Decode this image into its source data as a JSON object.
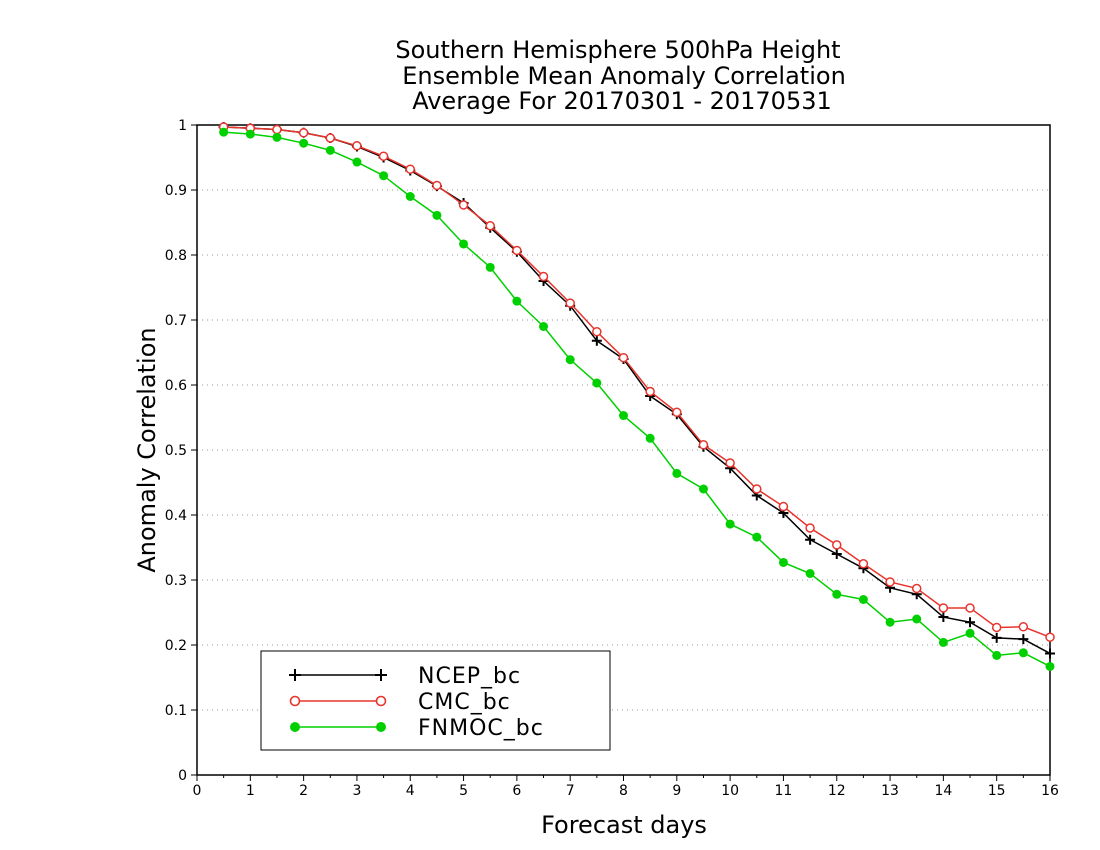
{
  "chart_data": {
    "type": "line",
    "title": [
      "Southern Hemisphere 500hPa Height",
      "Ensemble Mean Anomaly Correlation",
      "Average For 20170301 - 20170531"
    ],
    "xlabel": "Forecast days",
    "ylabel": "Anomaly Correlation",
    "xlim": [
      0,
      16
    ],
    "ylim": [
      0,
      1
    ],
    "xticks": [
      "0",
      "1",
      "2",
      "3",
      "4",
      "5",
      "6",
      "7",
      "8",
      "9",
      "10",
      "11",
      "12",
      "13",
      "14",
      "15",
      "16"
    ],
    "yticks": [
      "0",
      "0.1",
      "0.2",
      "0.3",
      "0.4",
      "0.5",
      "0.6",
      "0.7",
      "0.8",
      "0.9",
      "1"
    ],
    "grid": "dotted horizontal",
    "legend_position": "bottom-left",
    "x": [
      0.5,
      1,
      1.5,
      2,
      2.5,
      3,
      3.5,
      4,
      4.5,
      5,
      5.5,
      6,
      6.5,
      7,
      7.5,
      8,
      8.5,
      9,
      9.5,
      10,
      10.5,
      11,
      11.5,
      12,
      12.5,
      13,
      13.5,
      14,
      14.5,
      15,
      15.5,
      16
    ],
    "series": [
      {
        "name": "NCEP_bc",
        "color": "#000000",
        "marker": "plus",
        "values": [
          0.997,
          0.995,
          0.993,
          0.988,
          0.98,
          0.967,
          0.95,
          0.93,
          0.906,
          0.88,
          0.842,
          0.805,
          0.76,
          0.722,
          0.668,
          0.64,
          0.583,
          0.555,
          0.505,
          0.472,
          0.43,
          0.403,
          0.362,
          0.34,
          0.318,
          0.288,
          0.278,
          0.243,
          0.235,
          0.211,
          0.209,
          0.187
        ]
      },
      {
        "name": "CMC_bc",
        "color": "#e8342c",
        "marker": "open-circle",
        "values": [
          0.997,
          0.995,
          0.993,
          0.988,
          0.98,
          0.968,
          0.952,
          0.932,
          0.907,
          0.877,
          0.845,
          0.807,
          0.767,
          0.726,
          0.682,
          0.642,
          0.59,
          0.558,
          0.508,
          0.48,
          0.44,
          0.413,
          0.38,
          0.354,
          0.325,
          0.297,
          0.287,
          0.257,
          0.257,
          0.227,
          0.228,
          0.212
        ]
      },
      {
        "name": "FNMOC_bc",
        "color": "#00d000",
        "marker": "filled-circle",
        "values": [
          0.989,
          0.986,
          0.981,
          0.972,
          0.961,
          0.943,
          0.922,
          0.89,
          0.861,
          0.817,
          0.781,
          0.729,
          0.69,
          0.639,
          0.603,
          0.553,
          0.518,
          0.464,
          0.44,
          0.386,
          0.366,
          0.327,
          0.31,
          0.278,
          0.27,
          0.235,
          0.24,
          0.204,
          0.218,
          0.184,
          0.188,
          0.167
        ]
      }
    ]
  }
}
